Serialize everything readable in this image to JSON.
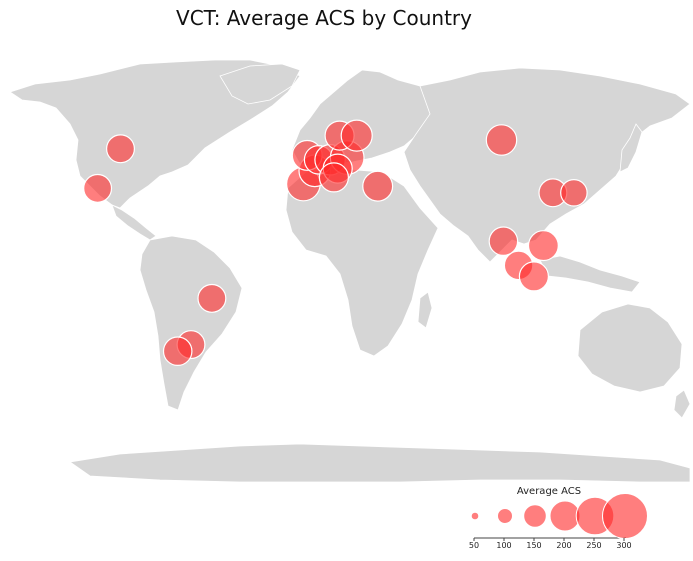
{
  "title": "VCT: Average ACS by Country",
  "legend": {
    "title": "Average ACS",
    "sizes": [
      50,
      100,
      150,
      200,
      250,
      300
    ]
  },
  "colors": {
    "bubble": "#ff2828",
    "land": "#d6d6d6"
  },
  "chart_data": {
    "type": "bubble-map",
    "title": "VCT: Average ACS by Country",
    "size_legend_title": "Average ACS",
    "points": [
      {
        "lon": -100,
        "lat": 56,
        "acs": 210
      },
      {
        "lon": -112,
        "lat": 38,
        "acs": 210
      },
      {
        "lon": -4,
        "lat": 40,
        "acs": 255
      },
      {
        "lon": 2,
        "lat": 46,
        "acs": 240
      },
      {
        "lon": -2,
        "lat": 53,
        "acs": 225
      },
      {
        "lon": 4,
        "lat": 51,
        "acs": 215
      },
      {
        "lon": 10,
        "lat": 51,
        "acs": 230
      },
      {
        "lon": 19,
        "lat": 52,
        "acs": 255
      },
      {
        "lon": 14,
        "lat": 47,
        "acs": 220
      },
      {
        "lon": 12,
        "lat": 43,
        "acs": 220
      },
      {
        "lon": 15,
        "lat": 62,
        "acs": 220
      },
      {
        "lon": 24,
        "lat": 62,
        "acs": 235
      },
      {
        "lon": 35,
        "lat": 39,
        "acs": 225
      },
      {
        "lon": 100,
        "lat": 60,
        "acs": 230
      },
      {
        "lon": 127,
        "lat": 36,
        "acs": 210
      },
      {
        "lon": 138,
        "lat": 36,
        "acs": 200
      },
      {
        "lon": 101,
        "lat": 14,
        "acs": 215
      },
      {
        "lon": 122,
        "lat": 12,
        "acs": 225
      },
      {
        "lon": 109,
        "lat": 3,
        "acs": 215
      },
      {
        "lon": 117,
        "lat": -2,
        "acs": 220
      },
      {
        "lon": -52,
        "lat": -12,
        "acs": 210
      },
      {
        "lon": -63,
        "lat": -33,
        "acs": 210
      },
      {
        "lon": -70,
        "lat": -36,
        "acs": 215
      }
    ]
  }
}
